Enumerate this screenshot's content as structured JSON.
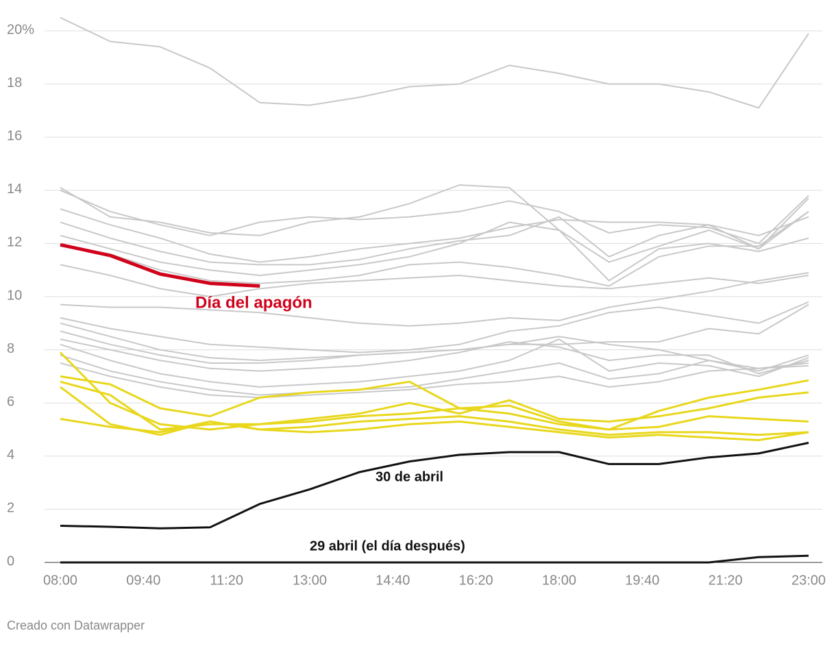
{
  "chart_data": {
    "type": "line",
    "x": [
      0,
      60,
      120,
      180,
      240,
      300,
      360,
      420,
      480,
      540,
      600,
      660,
      720,
      780,
      840,
      900
    ],
    "xlim": [
      0,
      900
    ],
    "xticks": [
      {
        "value": 0,
        "label": "08:00"
      },
      {
        "value": 100,
        "label": "09:40"
      },
      {
        "value": 200,
        "label": "11:20"
      },
      {
        "value": 300,
        "label": "13:00"
      },
      {
        "value": 400,
        "label": "14:40"
      },
      {
        "value": 500,
        "label": "16:20"
      },
      {
        "value": 600,
        "label": "18:00"
      },
      {
        "value": 700,
        "label": "19:40"
      },
      {
        "value": 800,
        "label": "21:20"
      },
      {
        "value": 900,
        "label": "23:00"
      }
    ],
    "ylim": [
      0,
      20
    ],
    "yticks": [
      0,
      2,
      4,
      6,
      8,
      10,
      12,
      14,
      16,
      18,
      {
        "value": 20,
        "label": "20%"
      }
    ],
    "grid": true,
    "series": [
      {
        "color": "#c8c8c8",
        "values": [
          20.5,
          19.6,
          19.4,
          18.6,
          17.3,
          17.2,
          17.5,
          17.9,
          18.0,
          18.7,
          18.4,
          18.0,
          18.0,
          17.7,
          17.1,
          19.9
        ]
      },
      {
        "color": "#c8c8c8",
        "values": [
          14.1,
          13.0,
          12.8,
          12.4,
          12.3,
          12.8,
          13.0,
          13.5,
          14.2,
          14.1,
          12.5,
          11.3,
          11.9,
          12.5,
          11.8,
          13.7
        ]
      },
      {
        "color": "#c8c8c8",
        "values": [
          14.0,
          13.2,
          12.7,
          12.3,
          12.8,
          13.0,
          12.9,
          13.0,
          13.2,
          13.6,
          13.2,
          12.4,
          12.7,
          12.6,
          12.0,
          13.8
        ]
      },
      {
        "color": "#c8c8c8",
        "values": [
          13.3,
          12.7,
          12.2,
          11.6,
          11.3,
          11.5,
          11.8,
          12.0,
          12.2,
          12.6,
          12.9,
          12.8,
          12.8,
          12.7,
          12.3,
          13.0
        ]
      },
      {
        "color": "#c8c8c8",
        "values": [
          12.8,
          12.2,
          11.7,
          11.3,
          11.2,
          11.2,
          11.4,
          11.8,
          12.1,
          12.3,
          13.0,
          11.5,
          12.3,
          12.7,
          11.8,
          13.2
        ]
      },
      {
        "color": "#c8c8c8",
        "values": [
          12.3,
          11.8,
          11.3,
          11.0,
          10.8,
          11.0,
          11.2,
          11.5,
          12.0,
          12.8,
          12.5,
          10.6,
          11.8,
          12.0,
          11.7,
          12.2
        ]
      },
      {
        "color": "#c8c8c8",
        "values": [
          11.9,
          11.6,
          11.0,
          10.6,
          10.5,
          10.6,
          10.8,
          11.2,
          11.3,
          11.1,
          10.8,
          10.4,
          11.5,
          11.9,
          11.9,
          13.2
        ]
      },
      {
        "color": "#c8c8c8",
        "values": [
          11.2,
          10.8,
          10.3,
          10.0,
          10.3,
          10.5,
          10.6,
          10.7,
          10.8,
          10.6,
          10.4,
          10.3,
          10.5,
          10.7,
          10.5,
          10.8
        ]
      },
      {
        "color": "#c8c8c8",
        "values": [
          9.7,
          9.6,
          9.6,
          9.5,
          9.4,
          9.2,
          9.0,
          8.9,
          9.0,
          9.2,
          9.1,
          9.6,
          9.9,
          10.2,
          10.6,
          10.9
        ]
      },
      {
        "color": "#c8c8c8",
        "values": [
          9.2,
          8.8,
          8.5,
          8.2,
          8.1,
          8.0,
          7.9,
          8.0,
          8.2,
          8.7,
          8.9,
          9.4,
          9.6,
          9.3,
          9.0,
          9.8
        ]
      },
      {
        "color": "#c8c8c8",
        "values": [
          9.0,
          8.5,
          8.0,
          7.7,
          7.6,
          7.7,
          7.8,
          7.9,
          8.0,
          8.2,
          8.2,
          8.3,
          8.3,
          8.8,
          8.6,
          9.7
        ]
      },
      {
        "color": "#c8c8c8",
        "values": [
          8.7,
          8.2,
          7.8,
          7.5,
          7.5,
          7.6,
          7.8,
          7.9,
          8.0,
          8.2,
          8.5,
          8.2,
          8.0,
          7.6,
          7.2,
          7.8
        ]
      },
      {
        "color": "#c8c8c8",
        "values": [
          8.4,
          8.0,
          7.6,
          7.3,
          7.2,
          7.3,
          7.4,
          7.6,
          7.9,
          8.3,
          8.1,
          7.6,
          7.8,
          7.8,
          7.1,
          7.6
        ]
      },
      {
        "color": "#c8c8c8",
        "values": [
          8.2,
          7.6,
          7.1,
          6.8,
          6.6,
          6.7,
          6.8,
          7.0,
          7.2,
          7.6,
          8.4,
          7.2,
          7.5,
          7.4,
          7.0,
          7.7
        ]
      },
      {
        "color": "#c8c8c8",
        "values": [
          7.8,
          7.2,
          6.8,
          6.5,
          6.3,
          6.4,
          6.5,
          6.6,
          6.9,
          7.2,
          7.5,
          6.9,
          7.1,
          7.6,
          7.3,
          7.4
        ]
      },
      {
        "color": "#c8c8c8",
        "values": [
          7.5,
          7.0,
          6.6,
          6.3,
          6.2,
          6.3,
          6.4,
          6.5,
          6.7,
          6.8,
          7.0,
          6.6,
          6.8,
          7.2,
          7.3,
          7.5
        ]
      },
      {
        "color": "#e8d71c",
        "values": [
          7.9,
          6.0,
          5.2,
          5.0,
          5.2,
          5.3,
          5.5,
          5.6,
          5.8,
          5.6,
          5.2,
          5.0,
          5.1,
          5.5,
          5.4,
          5.3
        ]
      },
      {
        "color": "#e8d71c",
        "values": [
          7.0,
          6.7,
          5.8,
          5.5,
          6.2,
          6.4,
          6.5,
          6.8,
          5.8,
          5.9,
          5.3,
          5.0,
          5.7,
          6.2,
          6.5,
          6.85
        ]
      },
      {
        "color": "#e8d71c",
        "values": [
          6.8,
          6.3,
          5.0,
          5.2,
          5.2,
          5.4,
          5.6,
          6.0,
          5.6,
          6.1,
          5.4,
          5.3,
          5.5,
          5.8,
          6.2,
          6.4
        ]
      },
      {
        "color": "#e8d71c",
        "values": [
          5.4,
          5.1,
          4.9,
          5.3,
          5.0,
          5.1,
          5.3,
          5.4,
          5.5,
          5.3,
          5.0,
          4.8,
          4.9,
          4.9,
          4.8,
          4.9
        ]
      },
      {
        "color": "#e8d71c",
        "values": [
          6.6,
          5.2,
          4.8,
          5.3,
          5.0,
          4.9,
          5.0,
          5.2,
          5.3,
          5.1,
          4.9,
          4.7,
          4.8,
          4.7,
          4.6,
          4.9
        ]
      },
      {
        "name": "29 abril (el día después)",
        "color": "#111111",
        "values": [
          0,
          0,
          0,
          0,
          0,
          0,
          0,
          0,
          0,
          0,
          0,
          0,
          0,
          0,
          0.2,
          0.25
        ]
      },
      {
        "name": "30 de abril",
        "color": "#111111",
        "values": [
          1.38,
          1.34,
          1.28,
          1.32,
          2.2,
          2.75,
          3.4,
          3.8,
          4.05,
          4.15,
          4.15,
          3.7,
          3.7,
          3.95,
          4.1,
          4.5
        ]
      },
      {
        "name": "Día del apagón",
        "color": "#d0021b",
        "values": [
          11.95,
          11.55,
          10.85,
          10.5,
          10.4,
          null,
          null,
          null,
          null,
          null,
          null,
          null,
          null,
          null,
          null,
          null
        ]
      }
    ],
    "footer": "Creado con Datawrapper"
  }
}
